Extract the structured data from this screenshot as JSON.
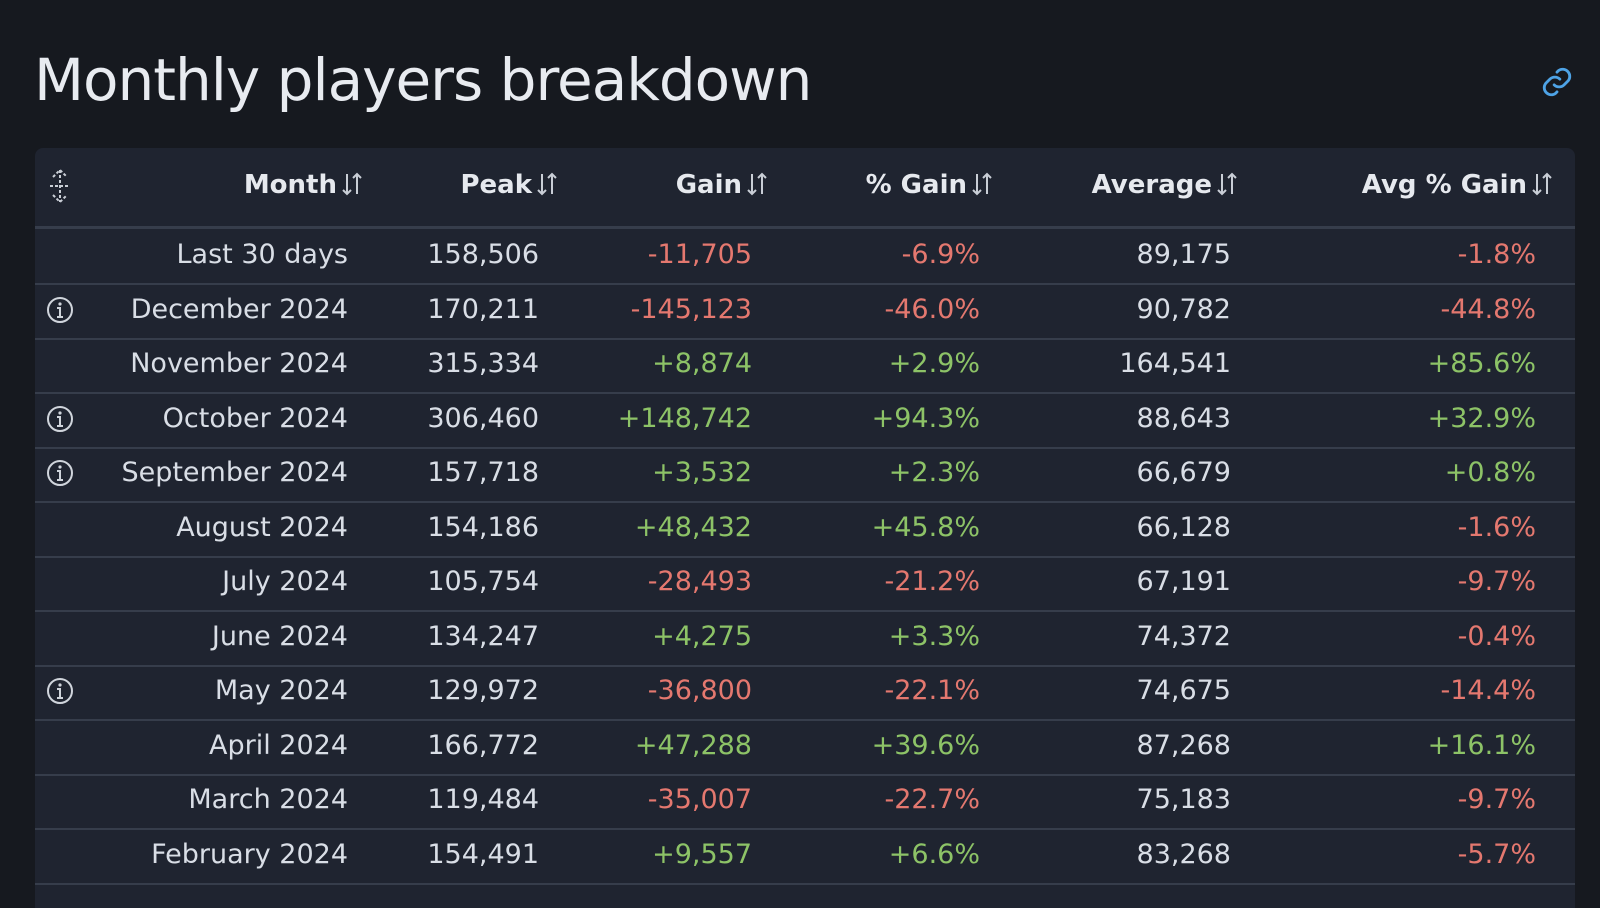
{
  "header": {
    "title": "Monthly players breakdown"
  },
  "table": {
    "columns": [
      "Month",
      "Peak",
      "Gain",
      "% Gain",
      "Average",
      "Avg % Gain"
    ],
    "rows": [
      [
        "Last 30 days",
        "158,506",
        "-11,705",
        "-6.9%",
        "89,175",
        "-1.8%"
      ],
      [
        "December 2024",
        "170,211",
        "-145,123",
        "-46.0%",
        "90,782",
        "-44.8%"
      ],
      [
        "November 2024",
        "315,334",
        "+8,874",
        "+2.9%",
        "164,541",
        "+85.6%"
      ],
      [
        "October 2024",
        "306,460",
        "+148,742",
        "+94.3%",
        "88,643",
        "+32.9%"
      ],
      [
        "September 2024",
        "157,718",
        "+3,532",
        "+2.3%",
        "66,679",
        "+0.8%"
      ],
      [
        "August 2024",
        "154,186",
        "+48,432",
        "+45.8%",
        "66,128",
        "-1.6%"
      ],
      [
        "July 2024",
        "105,754",
        "-28,493",
        "-21.2%",
        "67,191",
        "-9.7%"
      ],
      [
        "June 2024",
        "134,247",
        "+4,275",
        "+3.3%",
        "74,372",
        "-0.4%"
      ],
      [
        "May 2024",
        "129,972",
        "-36,800",
        "-22.1%",
        "74,675",
        "-14.4%"
      ],
      [
        "April 2024",
        "166,772",
        "+47,288",
        "+39.6%",
        "87,268",
        "+16.1%"
      ],
      [
        "March 2024",
        "119,484",
        "-35,007",
        "-22.7%",
        "75,183",
        "-9.7%"
      ],
      [
        "February 2024",
        "154,491",
        "+9,557",
        "+6.6%",
        "83,268",
        "-5.7%"
      ]
    ]
  }
}
